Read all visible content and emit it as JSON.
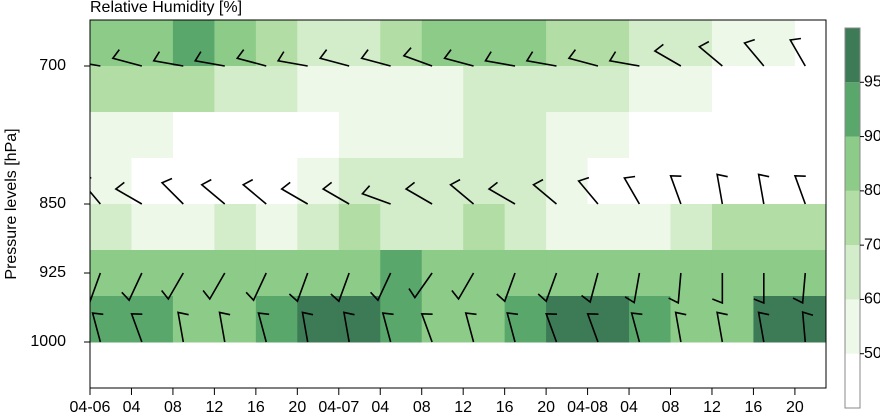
{
  "chart_data": {
    "type": "contour",
    "title": "Relative Humidity [%]",
    "y_label": "Pressure levels [hPa]",
    "xlim": [
      0,
      71
    ],
    "ylim": [
      1050,
      650
    ],
    "xticks": [
      {
        "value": 0,
        "label": "04-06"
      },
      {
        "value": 4,
        "label": "04"
      },
      {
        "value": 8,
        "label": "08"
      },
      {
        "value": 12,
        "label": "12"
      },
      {
        "value": 16,
        "label": "16"
      },
      {
        "value": 20,
        "label": "20"
      },
      {
        "value": 24,
        "label": "04-07"
      },
      {
        "value": 28,
        "label": "04"
      },
      {
        "value": 32,
        "label": "08"
      },
      {
        "value": 36,
        "label": "12"
      },
      {
        "value": 40,
        "label": "16"
      },
      {
        "value": 44,
        "label": "20"
      },
      {
        "value": 48,
        "label": "04-08"
      },
      {
        "value": 52,
        "label": "04"
      },
      {
        "value": 56,
        "label": "08"
      },
      {
        "value": 60,
        "label": "12"
      },
      {
        "value": 64,
        "label": "16"
      },
      {
        "value": 68,
        "label": "20"
      }
    ],
    "yticks": [
      700,
      850,
      925,
      1000
    ],
    "x": [
      2,
      6,
      10,
      14,
      18,
      22,
      26,
      30,
      34,
      38,
      42,
      46,
      50,
      54,
      58,
      62,
      66,
      70
    ],
    "levels": [
      675,
      725,
      775,
      825,
      875,
      925,
      975
    ],
    "values": [
      [
        85,
        88,
        90,
        85,
        75,
        65,
        65,
        70,
        80,
        85,
        80,
        75,
        70,
        65,
        60,
        55,
        50,
        45
      ],
      [
        70,
        75,
        70,
        65,
        60,
        55,
        50,
        50,
        55,
        60,
        65,
        65,
        60,
        55,
        50,
        45,
        40,
        40
      ],
      [
        55,
        50,
        45,
        40,
        40,
        45,
        50,
        55,
        55,
        60,
        60,
        55,
        50,
        45,
        40,
        35,
        30,
        30
      ],
      [
        50,
        45,
        40,
        40,
        45,
        55,
        65,
        60,
        60,
        65,
        60,
        50,
        45,
        45,
        40,
        35,
        35,
        35
      ],
      [
        60,
        55,
        55,
        60,
        55,
        65,
        70,
        65,
        60,
        70,
        65,
        55,
        50,
        55,
        60,
        70,
        75,
        70
      ],
      [
        85,
        85,
        85,
        80,
        80,
        85,
        88,
        90,
        85,
        80,
        85,
        85,
        85,
        80,
        82,
        85,
        85,
        85
      ],
      [
        92,
        92,
        88,
        85,
        94,
        96,
        96,
        94,
        88,
        88,
        94,
        96,
        96,
        92,
        86,
        88,
        96,
        97
      ]
    ],
    "colorbar_ticks": [
      50,
      60,
      70,
      80,
      90,
      95
    ],
    "colors": [
      "#ffffff",
      "#edf8e9",
      "#d3edcb",
      "#b2dea6",
      "#8ccb88",
      "#5aa76c",
      "#3d7a56"
    ],
    "wind": {
      "x": [
        1,
        5,
        9,
        13,
        17,
        21,
        25,
        29,
        33,
        37,
        41,
        45,
        49,
        53,
        57,
        61,
        65,
        69
      ],
      "levels": [
        700,
        850,
        925,
        1000
      ],
      "direction": [
        [
          280,
          285,
          280,
          280,
          285,
          280,
          285,
          285,
          290,
          285,
          280,
          280,
          285,
          280,
          300,
          310,
          320,
          330
        ],
        [
          320,
          300,
          315,
          310,
          310,
          300,
          300,
          290,
          300,
          310,
          300,
          310,
          320,
          330,
          340,
          350,
          350,
          340
        ],
        [
          200,
          205,
          210,
          210,
          205,
          200,
          200,
          205,
          215,
          210,
          200,
          200,
          195,
          190,
          185,
          180,
          180,
          185
        ],
        [
          345,
          340,
          350,
          350,
          345,
          350,
          350,
          345,
          340,
          345,
          345,
          340,
          340,
          345,
          350,
          350,
          350,
          355
        ]
      ]
    }
  }
}
